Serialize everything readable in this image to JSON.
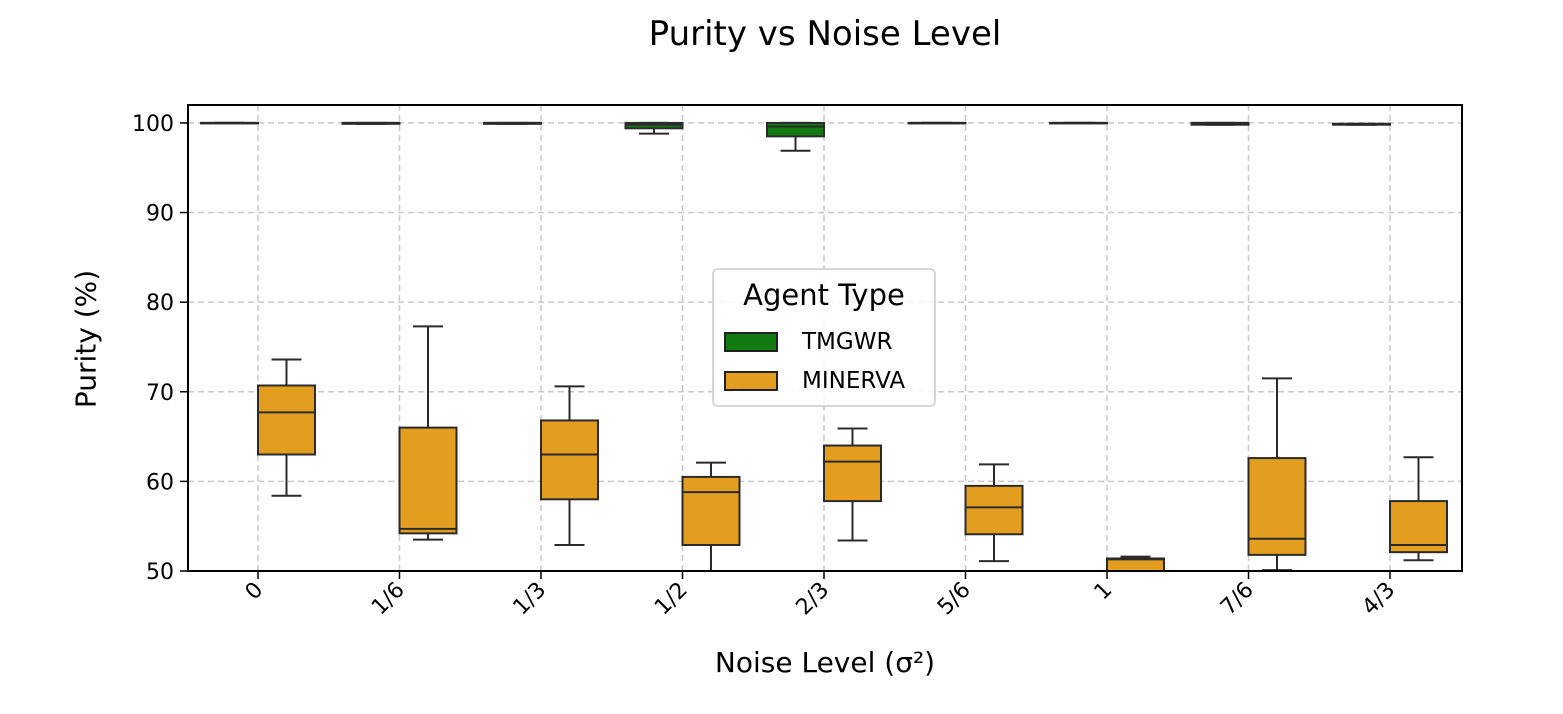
{
  "chart_data": {
    "type": "box",
    "title": "Purity vs Noise Level",
    "xlabel": "Noise Level (σ²)",
    "ylabel": "Purity (%)",
    "categories": [
      "0",
      "1/6",
      "1/3",
      "1/2",
      "2/3",
      "5/6",
      "1",
      "7/6",
      "4/3"
    ],
    "ylim": [
      50,
      102
    ],
    "yticks": [
      50,
      60,
      70,
      80,
      90,
      100
    ],
    "grid": true,
    "legend": {
      "title": "Agent Type",
      "placement": "center"
    },
    "series": [
      {
        "name": "TMGWR",
        "color": "#117a11",
        "boxes": [
          {
            "whisker_low": 100,
            "q1": 100,
            "median": 100,
            "q3": 100,
            "whisker_high": 100
          },
          {
            "whisker_low": 99.9,
            "q1": 99.9,
            "median": 100,
            "q3": 100,
            "whisker_high": 100
          },
          {
            "whisker_low": 99.9,
            "q1": 99.9,
            "median": 100,
            "q3": 100,
            "whisker_high": 100
          },
          {
            "whisker_low": 98.8,
            "q1": 99.4,
            "median": 99.8,
            "q3": 100,
            "whisker_high": 100
          },
          {
            "whisker_low": 96.9,
            "q1": 98.5,
            "median": 99.6,
            "q3": 100,
            "whisker_high": 100
          },
          {
            "whisker_low": 100,
            "q1": 100,
            "median": 100,
            "q3": 100,
            "whisker_high": 100
          },
          {
            "whisker_low": 100,
            "q1": 100,
            "median": 100,
            "q3": 100,
            "whisker_high": 100
          },
          {
            "whisker_low": 99.8,
            "q1": 99.8,
            "median": 100,
            "q3": 100,
            "whisker_high": 100
          },
          {
            "whisker_low": 99.8,
            "q1": 99.8,
            "median": 99.9,
            "q3": 99.9,
            "whisker_high": 99.9
          }
        ]
      },
      {
        "name": "MINERVA",
        "color": "#e39e1f",
        "boxes": [
          {
            "whisker_low": 58.4,
            "q1": 63.0,
            "median": 67.7,
            "q3": 70.7,
            "whisker_high": 73.6
          },
          {
            "whisker_low": 53.5,
            "q1": 54.2,
            "median": 54.7,
            "q3": 66.0,
            "whisker_high": 77.3
          },
          {
            "whisker_low": 52.9,
            "q1": 58.0,
            "median": 63.0,
            "q3": 66.8,
            "whisker_high": 70.6
          },
          {
            "whisker_low": 50.0,
            "q1": 52.9,
            "median": 58.8,
            "q3": 60.5,
            "whisker_high": 62.1
          },
          {
            "whisker_low": 53.4,
            "q1": 57.8,
            "median": 62.2,
            "q3": 64.0,
            "whisker_high": 65.9
          },
          {
            "whisker_low": 51.1,
            "q1": 54.1,
            "median": 57.1,
            "q3": 59.5,
            "whisker_high": 61.9
          },
          {
            "whisker_low": 50.0,
            "q1": 50.0,
            "median": 51.3,
            "q3": 51.4,
            "whisker_high": 51.6
          },
          {
            "whisker_low": 50.1,
            "q1": 51.8,
            "median": 53.6,
            "q3": 62.6,
            "whisker_high": 71.5
          },
          {
            "whisker_low": 51.2,
            "q1": 52.1,
            "median": 52.9,
            "q3": 57.8,
            "whisker_high": 62.7
          }
        ]
      }
    ]
  }
}
